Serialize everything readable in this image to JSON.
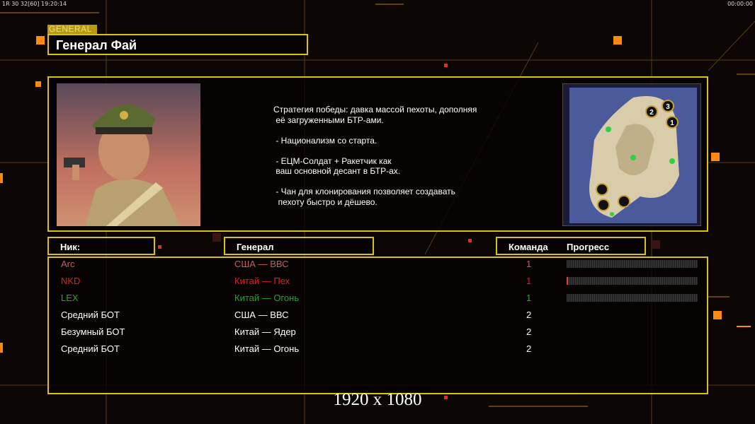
{
  "status": {
    "fps_text": "1R 30 32[60] 19:20:14",
    "clock": "00:00:00"
  },
  "general": {
    "tag": "GENERAL",
    "name": "Генерал Фай",
    "description": "Стратегия победы: давка массой пехоты, дополняя\n её загруженными БТР-ами.\n\n - Национализм со старта.\n\n - ЕЦМ-Солдат + Ракетчик как\n ваш основной десант в БТР-ах.\n\n - Чан для клонирования позволяет создавать\n  пехоту быстро и дёшево."
  },
  "map": {
    "start_positions": [
      "1",
      "2",
      "3"
    ]
  },
  "table": {
    "headers": {
      "nick": "Ник:",
      "general": "Генерал",
      "team": "Команда",
      "progress": "Прогресс"
    },
    "rows": [
      {
        "nick": "Arc",
        "general": "США — ВВС",
        "team": "1",
        "color": "#c06060",
        "progress": 0
      },
      {
        "nick": "NKD",
        "general": "Китай — Пех",
        "team": "1",
        "color": "#e02020",
        "progress": 0.01
      },
      {
        "nick": "LEX",
        "general": "Китай — Огонь",
        "team": "1",
        "color": "#30a030",
        "progress": 0
      },
      {
        "nick": "Средний БОТ",
        "general": "США — ВВС",
        "team": "2",
        "color": "#ffffff"
      },
      {
        "nick": "Безумный БОТ",
        "general": "Китай — Ядер",
        "team": "2",
        "color": "#ffffff"
      },
      {
        "nick": "Средний БОТ",
        "general": "Китай — Огонь",
        "team": "2",
        "color": "#ffffff"
      }
    ]
  },
  "resolution": "1920 x 1080",
  "colors": {
    "frame": "#d8c21a",
    "accent": "#ff8a10"
  }
}
